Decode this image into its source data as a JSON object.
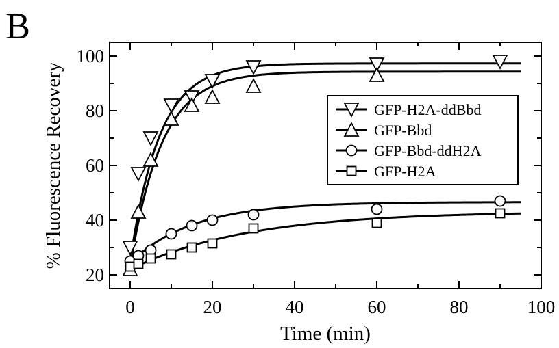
{
  "panel_label": "B",
  "chart_data": {
    "type": "scatter",
    "title": "",
    "xlabel": "Time (min)",
    "ylabel": "% Fluorescence Recovery",
    "xlim": [
      -5,
      100
    ],
    "ylim": [
      15,
      105
    ],
    "xticks": [
      0,
      20,
      40,
      60,
      80,
      100
    ],
    "yticks": [
      20,
      40,
      60,
      80,
      100
    ],
    "grid": false,
    "legend_position": "right",
    "series": [
      {
        "name": "GFP-H2A-ddBbd",
        "marker": "triangle-down",
        "x": [
          0,
          2,
          5,
          10,
          15,
          20,
          30,
          60,
          90
        ],
        "y": [
          30,
          57,
          70,
          82,
          85,
          91,
          96,
          97,
          98
        ],
        "fit": {
          "y0": 25,
          "plateau": 97.3,
          "k": 0.14
        }
      },
      {
        "name": "GFP-Bbd",
        "marker": "triangle-up",
        "x": [
          0,
          2,
          5,
          10,
          15,
          20,
          30,
          60
        ],
        "y": [
          22,
          43,
          62,
          77,
          82,
          85,
          89,
          93
        ],
        "fit": {
          "y0": 23,
          "plateau": 94.3,
          "k": 0.13
        }
      },
      {
        "name": "GFP-Bbd-ddH2A",
        "marker": "circle",
        "x": [
          0,
          2,
          5,
          10,
          15,
          20,
          30,
          60,
          90
        ],
        "y": [
          25,
          27,
          29,
          35,
          38,
          40,
          42,
          44,
          47
        ],
        "fit": {
          "y0": 24.5,
          "plateau": 46.6,
          "k": 0.065
        }
      },
      {
        "name": "GFP-H2A",
        "marker": "square",
        "x": [
          0,
          2,
          5,
          10,
          15,
          20,
          30,
          60,
          90
        ],
        "y": [
          23,
          24,
          26,
          27.5,
          30,
          31.5,
          37,
          39,
          42.5
        ],
        "fit": {
          "y0": 22,
          "plateau": 43.2,
          "k": 0.035
        }
      }
    ]
  }
}
